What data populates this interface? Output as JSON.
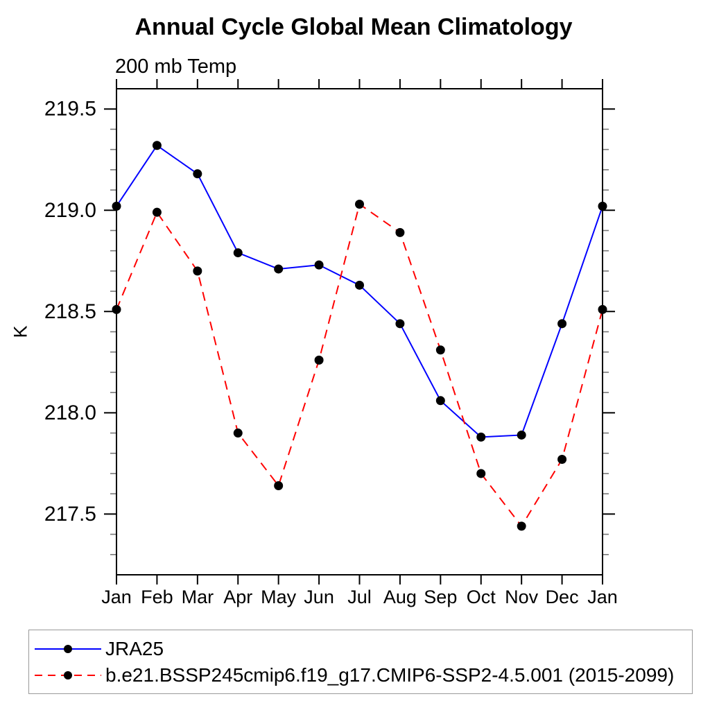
{
  "chart_data": {
    "type": "line",
    "title": "Annual Cycle Global Mean Climatology",
    "subtitle": "200 mb Temp",
    "ylabel": "K",
    "xlabel": "",
    "categories": [
      "Jan",
      "Feb",
      "Mar",
      "Apr",
      "May",
      "Jun",
      "Jul",
      "Aug",
      "Sep",
      "Oct",
      "Nov",
      "Dec",
      "Jan"
    ],
    "ylim": [
      217.2,
      219.6
    ],
    "yticks": [
      217.5,
      218.0,
      218.5,
      219.0,
      219.5
    ],
    "ytick_minor_step": 0.1,
    "grid": false,
    "legend_position": "bottom-left-box",
    "series": [
      {
        "name": "JRA25",
        "color": "#0000ff",
        "line_style": "solid",
        "marker": "circle",
        "marker_color": "#000000",
        "values": [
          219.02,
          219.32,
          219.18,
          218.79,
          218.71,
          218.73,
          218.63,
          218.44,
          218.06,
          217.88,
          217.89,
          218.44,
          219.02
        ]
      },
      {
        "name": "b.e21.BSSP245cmip6.f19_g17.CMIP6-SSP2-4.5.001 (2015-2099)",
        "color": "#ff0000",
        "line_style": "dashed",
        "marker": "circle",
        "marker_color": "#000000",
        "values": [
          218.51,
          218.99,
          218.7,
          217.9,
          217.64,
          218.26,
          219.03,
          218.89,
          218.31,
          217.7,
          217.44,
          217.77,
          218.51
        ]
      }
    ]
  }
}
